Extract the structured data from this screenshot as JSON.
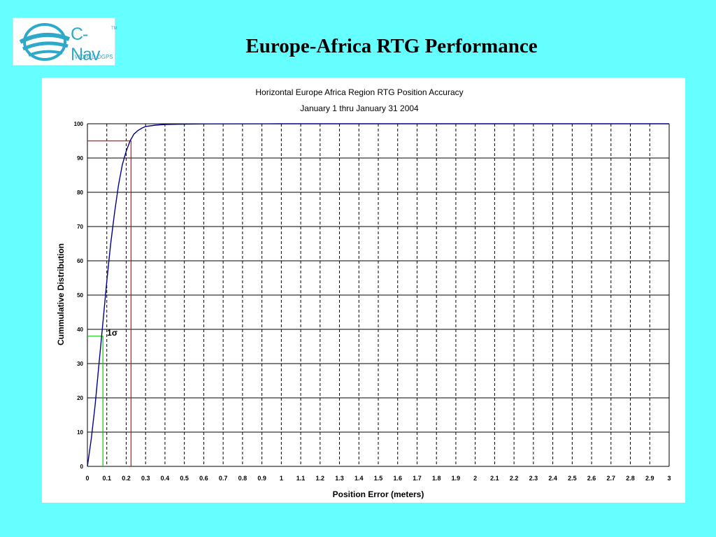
{
  "slide": {
    "title": "Europe-Africa RTG Performance"
  },
  "logo": {
    "wordmark": "C-Nav",
    "trademark": "TM",
    "subtitle": "WORLD DGPS",
    "color": "#2ea9c9"
  },
  "colors": {
    "background": "#66ffff",
    "curve": "#00008b",
    "marker_95": "#ff0000",
    "marker_1sigma": "#00cc00"
  },
  "chart_data": {
    "type": "line",
    "title": "Horizontal Europe Africa Region  RTG Position Accuracy",
    "subtitle": "January 1 thru January 31 2004",
    "xlabel": "Position Error (meters)",
    "ylabel": "Cummulative Distribution",
    "xlim": [
      0,
      3
    ],
    "ylim": [
      0,
      100
    ],
    "x_ticks": [
      "0",
      "0.1",
      "0.2",
      "0.3",
      "0.4",
      "0.5",
      "0.6",
      "0.7",
      "0.8",
      "0.9",
      "1",
      "1.1",
      "1.2",
      "1.3",
      "1.4",
      "1.5",
      "1.6",
      "1.7",
      "1.8",
      "1.9",
      "2",
      "2.1",
      "2.2",
      "2.3",
      "2.4",
      "2.5",
      "2.6",
      "2.7",
      "2.8",
      "2.9",
      "3"
    ],
    "y_ticks": [
      "0",
      "10",
      "20",
      "30",
      "40",
      "50",
      "60",
      "70",
      "80",
      "90",
      "100"
    ],
    "grid": {
      "vertical": "dashed",
      "horizontal": "solid"
    },
    "series": [
      {
        "x": [
          0,
          0.02,
          0.04,
          0.06,
          0.08,
          0.1,
          0.12,
          0.14,
          0.16,
          0.18,
          0.2,
          0.22,
          0.24,
          0.26,
          0.28,
          0.3,
          0.35,
          0.4,
          0.5,
          0.6,
          1,
          1.3,
          2,
          3
        ],
        "y": [
          0,
          8,
          18,
          30,
          42,
          54,
          65,
          74,
          82,
          88,
          92,
          95,
          97,
          98,
          98.7,
          99.2,
          99.6,
          99.8,
          99.9,
          99.95,
          100,
          100,
          100,
          100
        ]
      }
    ],
    "annotations": [
      {
        "label": "",
        "x": 0.225,
        "y": 95,
        "kind": "95-percent marker"
      },
      {
        "label": "1σ",
        "x": 0.08,
        "y": 38,
        "kind": "1-sigma marker"
      }
    ]
  }
}
